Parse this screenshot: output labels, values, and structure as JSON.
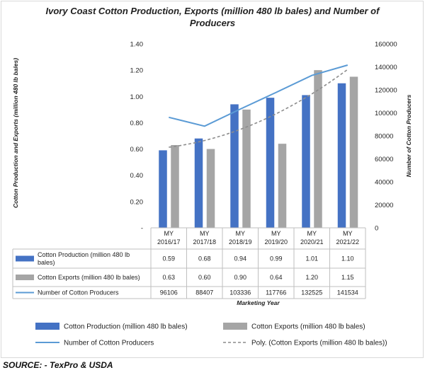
{
  "chart_data": {
    "type": "bar",
    "title": "Ivory Coast Cotton Production, Exports (million 480 lb bales) and Number of Producers",
    "title_lines": [
      "Ivory Coast Cotton Production, Exports (million 480 lb bales) and Number of",
      "Producers"
    ],
    "xlabel": "Marketing Year",
    "ylabel": "Cotton Production and Exports (million 480 lb bales)",
    "y2label": "Number of Cotton Producers",
    "categories": [
      [
        "MY",
        "2016/17"
      ],
      [
        "MY",
        "2017/18"
      ],
      [
        "MY",
        "2018/19"
      ],
      [
        "MY",
        "2019/20"
      ],
      [
        "MY",
        "2020/21"
      ],
      [
        "MY",
        "2021/22"
      ]
    ],
    "ylim": [
      0,
      1.4
    ],
    "y_ticks": [
      "-",
      "0.20",
      "0.40",
      "0.60",
      "0.80",
      "1.00",
      "1.20",
      "1.40"
    ],
    "y2lim": [
      0,
      160000
    ],
    "y2_ticks": [
      "0",
      "20000",
      "40000",
      "60000",
      "80000",
      "100000",
      "120000",
      "140000",
      "160000"
    ],
    "series": [
      {
        "name": "Cotton Production (million 480 lb bales)",
        "table_label": [
          "Cotton Production (million 480 lb",
          "bales)"
        ],
        "type": "bar",
        "axis": "left",
        "color": "#4472c4",
        "values": [
          0.59,
          0.68,
          0.94,
          0.99,
          1.01,
          1.1
        ],
        "display": [
          "0.59",
          "0.68",
          "0.94",
          "0.99",
          "1.01",
          "1.10"
        ]
      },
      {
        "name": "Cotton Exports (million 480 lb bales)",
        "table_label": [
          "Cotton Exports (million 480 lb bales)"
        ],
        "type": "bar",
        "axis": "left",
        "color": "#a5a5a5",
        "values": [
          0.63,
          0.6,
          0.9,
          0.64,
          1.2,
          1.15
        ],
        "display": [
          "0.63",
          "0.60",
          "0.90",
          "0.64",
          "1.20",
          "1.15"
        ]
      },
      {
        "name": "Number of Cotton Producers",
        "table_label": [
          "Number of Cotton Producers"
        ],
        "type": "line",
        "axis": "right",
        "color": "#5b9bd5",
        "values": [
          96106,
          88407,
          103336,
          117766,
          132525,
          141534
        ],
        "display": [
          "96106",
          "88407",
          "103336",
          "117766",
          "132525",
          "141534"
        ]
      }
    ],
    "trendline": {
      "name": "Poly. (Cotton Exports (million 480 lb bales))",
      "type": "polynomial",
      "of_series": "Cotton Exports (million 480 lb bales)",
      "style": "dashed",
      "color": "#a5a5a5"
    },
    "legend_position": "bottom",
    "grid": false
  },
  "source": "SOURCE: - TexPro & USDA"
}
